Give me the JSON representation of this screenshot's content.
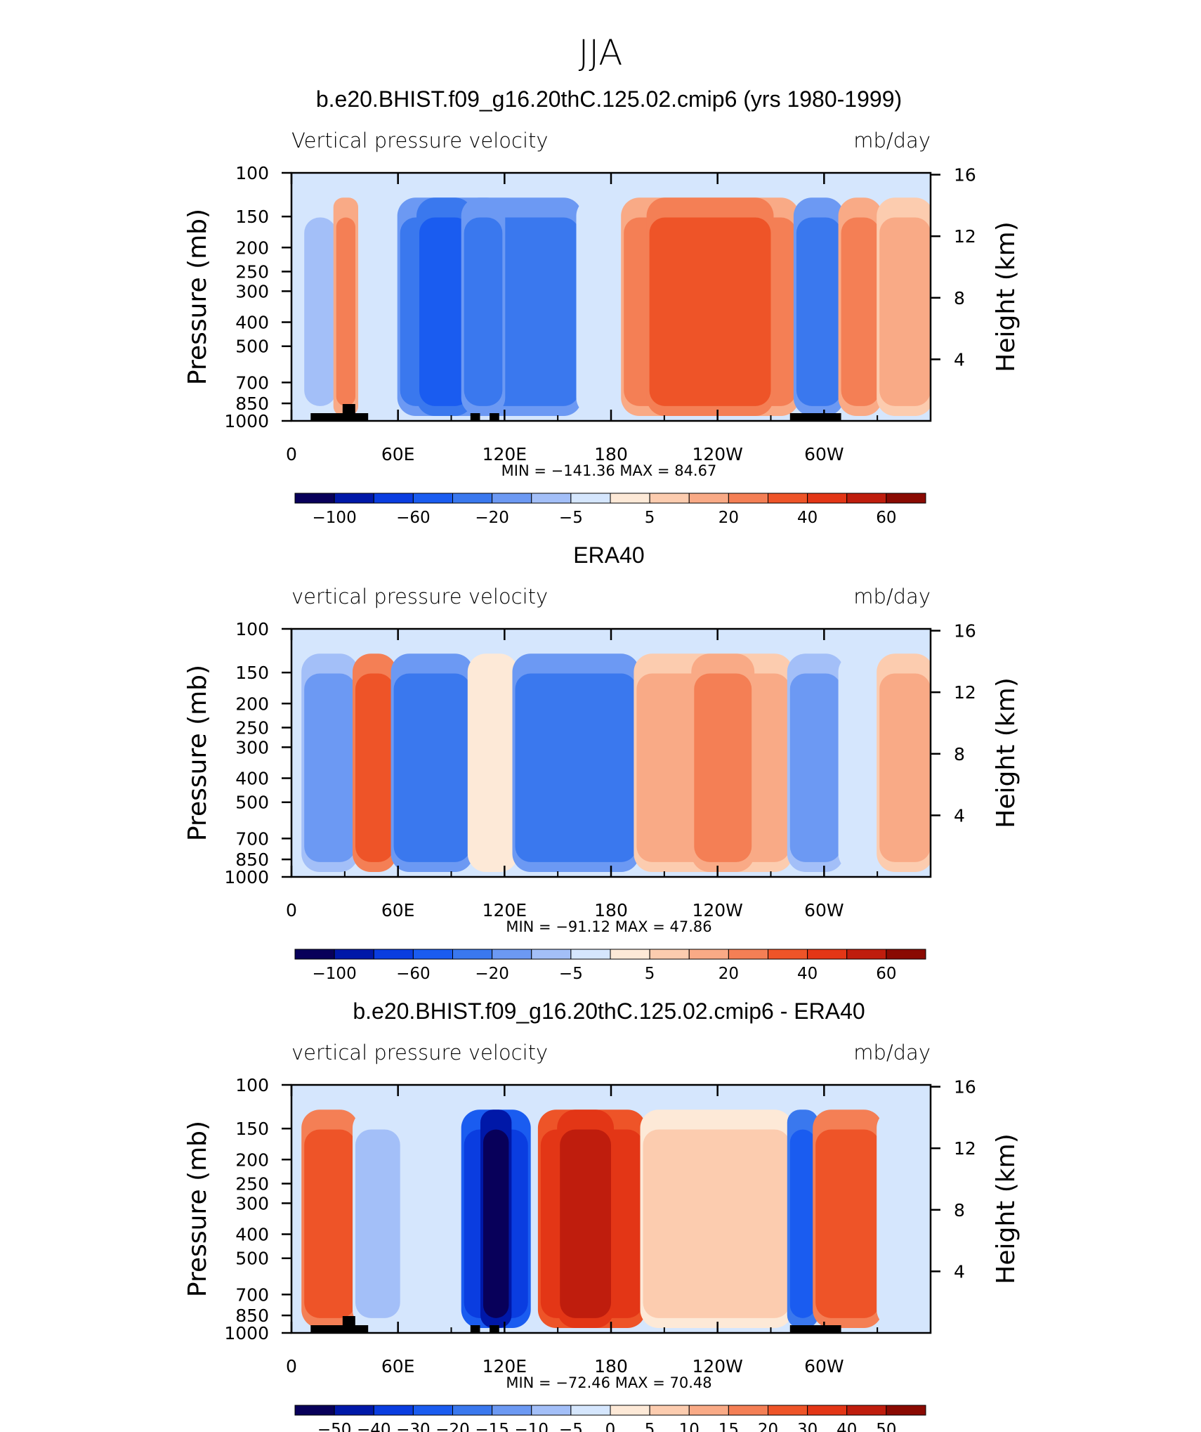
{
  "page_title": "JJA",
  "chart_data": [
    {
      "type": "contour",
      "title": "b.e20.BHIST.f09_g16.20thC.125.02.cmip6 (yrs 1980-1999)",
      "left_string": "Vertical pressure velocity",
      "right_string": "mb/day",
      "ylabel": "Pressure (mb)",
      "y2label": "Height (km)",
      "x_ticks": [
        "0",
        "60E",
        "120E",
        "180",
        "120W",
        "60W"
      ],
      "y_ticks": [
        "100",
        "150",
        "200",
        "250",
        "300",
        "400",
        "500",
        "700",
        "850",
        "1000"
      ],
      "y2_ticks": [
        "16",
        "12",
        "8",
        "4"
      ],
      "stats": "MIN = −141.36   MAX =   84.67",
      "colorbar_labels": [
        "−100",
        "−60",
        "−20",
        "−5",
        "5",
        "20",
        "40",
        "60"
      ],
      "palette": [
        "#08005a",
        "#0018a8",
        "#0a3de0",
        "#1a5cf0",
        "#3a78ee",
        "#6c99f3",
        "#a3bff8",
        "#d5e6fd",
        "#fde9d7",
        "#fcccaf",
        "#f9aa86",
        "#f47f55",
        "#ee5428",
        "#e33616",
        "#bf1d0d",
        "#8a0a02"
      ],
      "features": [
        {
          "x0": 0.02,
          "x1": 0.07,
          "c": 6
        },
        {
          "x0": 0.07,
          "x1": 0.1,
          "c": 11
        },
        {
          "x0": 0.17,
          "x1": 0.45,
          "c": 4
        },
        {
          "x0": 0.2,
          "x1": 0.28,
          "c": 3
        },
        {
          "x0": 0.27,
          "x1": 0.33,
          "c": 4
        },
        {
          "x0": 0.45,
          "x1": 0.52,
          "c": 7
        },
        {
          "x0": 0.52,
          "x1": 0.79,
          "c": 11
        },
        {
          "x0": 0.56,
          "x1": 0.75,
          "c": 12
        },
        {
          "x0": 0.79,
          "x1": 0.86,
          "c": 4
        },
        {
          "x0": 0.86,
          "x1": 0.92,
          "c": 11
        },
        {
          "x0": 0.92,
          "x1": 1.0,
          "c": 10
        }
      ]
    },
    {
      "type": "contour",
      "title": "ERA40",
      "left_string": "vertical pressure velocity",
      "right_string": "mb/day",
      "ylabel": "Pressure (mb)",
      "y2label": "Height (km)",
      "x_ticks": [
        "0",
        "60E",
        "120E",
        "180",
        "120W",
        "60W"
      ],
      "y_ticks": [
        "100",
        "150",
        "200",
        "250",
        "300",
        "400",
        "500",
        "700",
        "850",
        "1000"
      ],
      "y2_ticks": [
        "16",
        "12",
        "8",
        "4"
      ],
      "stats": "MIN = −91.12   MAX =   47.86",
      "colorbar_labels": [
        "−100",
        "−60",
        "−20",
        "−5",
        "5",
        "20",
        "40",
        "60"
      ],
      "palette": [
        "#08005a",
        "#0018a8",
        "#0a3de0",
        "#1a5cf0",
        "#3a78ee",
        "#6c99f3",
        "#a3bff8",
        "#d5e6fd",
        "#fde9d7",
        "#fcccaf",
        "#f9aa86",
        "#f47f55",
        "#ee5428",
        "#e33616",
        "#bf1d0d",
        "#8a0a02"
      ],
      "features": [
        {
          "x0": 0.02,
          "x1": 0.1,
          "c": 5
        },
        {
          "x0": 0.1,
          "x1": 0.16,
          "c": 12
        },
        {
          "x0": 0.16,
          "x1": 0.28,
          "c": 4
        },
        {
          "x0": 0.28,
          "x1": 0.35,
          "c": 8
        },
        {
          "x0": 0.35,
          "x1": 0.54,
          "c": 4
        },
        {
          "x0": 0.54,
          "x1": 0.78,
          "c": 10
        },
        {
          "x0": 0.63,
          "x1": 0.72,
          "c": 11
        },
        {
          "x0": 0.78,
          "x1": 0.86,
          "c": 5
        },
        {
          "x0": 0.86,
          "x1": 0.92,
          "c": 7
        },
        {
          "x0": 0.92,
          "x1": 1.0,
          "c": 10
        }
      ]
    },
    {
      "type": "contour",
      "title": "b.e20.BHIST.f09_g16.20thC.125.02.cmip6 - ERA40",
      "left_string": "vertical pressure velocity",
      "right_string": "mb/day",
      "ylabel": "Pressure (mb)",
      "y2label": "Height (km)",
      "x_ticks": [
        "0",
        "60E",
        "120E",
        "180",
        "120W",
        "60W"
      ],
      "y_ticks": [
        "100",
        "150",
        "200",
        "250",
        "300",
        "400",
        "500",
        "700",
        "850",
        "1000"
      ],
      "y2_ticks": [
        "16",
        "12",
        "8",
        "4"
      ],
      "stats": "MIN = −72.46   MAX =   70.48",
      "colorbar_labels": [
        "−50",
        "−40",
        "−30",
        "−20",
        "−15",
        "−10",
        "−5",
        "0",
        "5",
        "10",
        "15",
        "20",
        "30",
        "40",
        "50"
      ],
      "palette": [
        "#08005a",
        "#0018a8",
        "#0a3de0",
        "#1a5cf0",
        "#3a78ee",
        "#6c99f3",
        "#a3bff8",
        "#d5e6fd",
        "#fde9d7",
        "#fcccaf",
        "#f9aa86",
        "#f47f55",
        "#ee5428",
        "#e33616",
        "#bf1d0d",
        "#8a0a02"
      ],
      "features": [
        {
          "x0": 0.02,
          "x1": 0.1,
          "c": 12
        },
        {
          "x0": 0.1,
          "x1": 0.17,
          "c": 6
        },
        {
          "x0": 0.27,
          "x1": 0.37,
          "c": 2
        },
        {
          "x0": 0.3,
          "x1": 0.34,
          "c": 0
        },
        {
          "x0": 0.39,
          "x1": 0.55,
          "c": 13
        },
        {
          "x0": 0.42,
          "x1": 0.5,
          "c": 14
        },
        {
          "x0": 0.55,
          "x1": 0.78,
          "c": 9
        },
        {
          "x0": 0.78,
          "x1": 0.82,
          "c": 3
        },
        {
          "x0": 0.82,
          "x1": 0.92,
          "c": 12
        },
        {
          "x0": 0.92,
          "x1": 1.0,
          "c": 7
        }
      ]
    }
  ]
}
